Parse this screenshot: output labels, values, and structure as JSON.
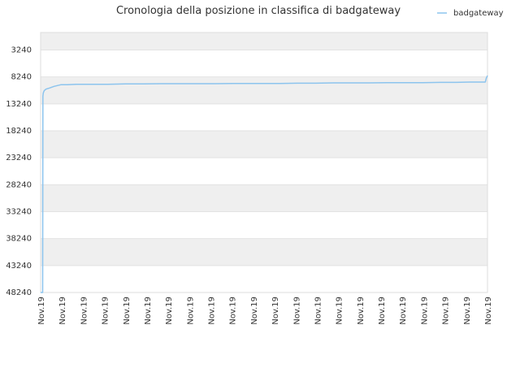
{
  "chart_data": {
    "type": "line",
    "title": "Cronologia della posizione in classifica di badgateway",
    "xlabel": "",
    "ylabel": "",
    "y_inverted": true,
    "ylim": [
      48240,
      0
    ],
    "y_ticks": [
      3240,
      8240,
      13240,
      18240,
      23240,
      28240,
      33240,
      38240,
      43240,
      48240
    ],
    "x_tick_labels": [
      "Nov.19",
      "Nov.19",
      "Nov.19",
      "Nov.19",
      "Nov.19",
      "Nov.19",
      "Nov.19",
      "Nov.19",
      "Nov.19",
      "Nov.19",
      "Nov.19",
      "Nov.19",
      "Nov.19",
      "Nov.19",
      "Nov.19",
      "Nov.19",
      "Nov.19",
      "Nov.19",
      "Nov.19",
      "Nov.19",
      "Nov.19",
      "Nov.19"
    ],
    "legend_position": "top-right",
    "grid": true,
    "series": [
      {
        "name": "badgateway",
        "color": "#8cc4ee",
        "x": [
          0.0,
          0.45,
          0.5,
          0.6,
          0.8,
          1.2,
          2.0,
          3.0,
          4.5,
          6.0,
          8.0,
          11.0,
          15.0,
          19.0,
          23.0,
          27.0,
          31.0,
          35.0,
          39.0,
          43.0,
          47.0,
          50.0,
          53.5,
          57.5,
          61.5,
          65.5,
          69.5,
          73.5,
          77.5,
          81.5,
          85.5,
          89.5,
          93.0,
          96.0,
          99.5,
          99.7,
          100.0
        ],
        "y": [
          48240,
          48240,
          11800,
          11200,
          10800,
          10500,
          10300,
          10000,
          9700,
          9700,
          9600,
          9600,
          9600,
          9550,
          9550,
          9500,
          9500,
          9500,
          9500,
          9450,
          9450,
          9450,
          9450,
          9400,
          9400,
          9350,
          9350,
          9350,
          9300,
          9300,
          9300,
          9250,
          9250,
          9200,
          9200,
          8500,
          8000
        ]
      }
    ]
  }
}
